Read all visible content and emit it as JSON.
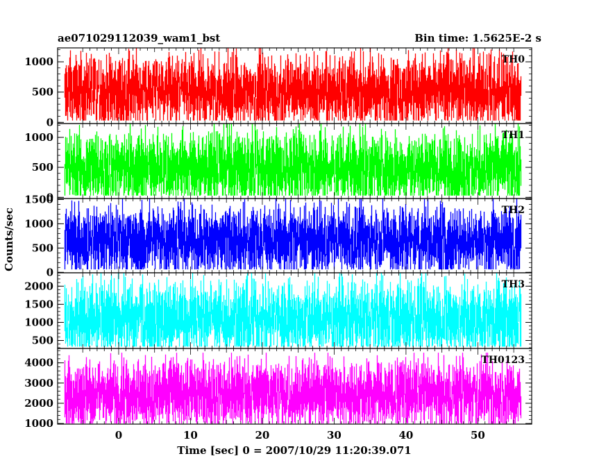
{
  "header": {
    "title": "ae071029112039_wam1_bst",
    "bin_time": "Bin time: 1.5625E-2 s"
  },
  "chart_data": {
    "type": "line",
    "xlabel": "Time [sec] 0 = 2007/10/29 11:20:39.071",
    "ylabel": "Counts/sec",
    "xlim": [
      -8.5,
      57.5
    ],
    "x_data_range": [
      -7.5,
      56.0
    ],
    "x_ticks": [
      0,
      10,
      20,
      30,
      40,
      50
    ],
    "x_tick_labels": [
      "0",
      "10",
      "20",
      "30",
      "40",
      "50"
    ],
    "grid": false,
    "panels": [
      {
        "name": "TH0",
        "color": "#ff0000",
        "ylim": [
          -20,
          1230
        ],
        "y_ticks": [
          0,
          500,
          1000
        ],
        "y_tick_labels": [
          "0",
          "500",
          "1000"
        ],
        "mean": 500,
        "min": 30,
        "max": 1230
      },
      {
        "name": "TH1",
        "color": "#00ff00",
        "ylim": [
          -20,
          1230
        ],
        "y_ticks": [
          0,
          500,
          1000
        ],
        "y_tick_labels": [
          "0",
          "500",
          "1000"
        ],
        "mean": 480,
        "min": 30,
        "max": 1230
      },
      {
        "name": "TH2",
        "color": "#0000ff",
        "ylim": [
          -10,
          1520
        ],
        "y_ticks": [
          0,
          500,
          1000,
          1500
        ],
        "y_tick_labels": [
          "0",
          "500",
          "1000",
          "1500"
        ],
        "mean": 650,
        "min": 60,
        "max": 1520
      },
      {
        "name": "TH3",
        "color": "#00ffff",
        "ylim": [
          280,
          2370
        ],
        "y_ticks": [
          500,
          1000,
          1500,
          2000
        ],
        "y_tick_labels": [
          "500",
          "1000",
          "1500",
          "2000"
        ],
        "mean": 1100,
        "min": 330,
        "max": 2370
      },
      {
        "name": "TH0123",
        "color": "#ff00ff",
        "ylim": [
          970,
          4710
        ],
        "y_ticks": [
          1000,
          2000,
          3000,
          4000
        ],
        "y_tick_labels": [
          "1000",
          "2000",
          "3000",
          "4000"
        ],
        "mean": 2450,
        "min": 1000,
        "max": 4500
      }
    ]
  }
}
